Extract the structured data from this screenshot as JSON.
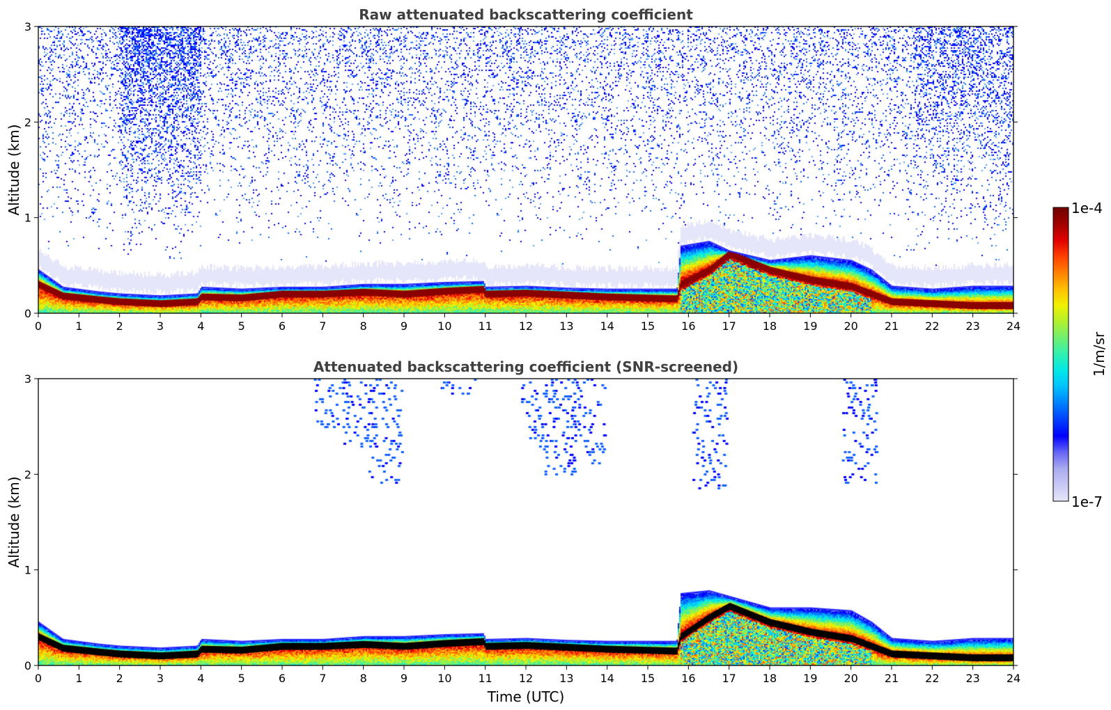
{
  "chart_data": [
    {
      "type": "heatmap",
      "title": "Raw attenuated backscattering coefficient",
      "xlabel": "",
      "ylabel": "Altitude (km)",
      "xlim": [
        0,
        24
      ],
      "ylim": [
        0,
        3
      ],
      "xticks": [
        "0",
        "1",
        "2",
        "3",
        "4",
        "5",
        "6",
        "7",
        "8",
        "9",
        "10",
        "11",
        "12",
        "13",
        "14",
        "15",
        "16",
        "17",
        "18",
        "19",
        "20",
        "21",
        "22",
        "23",
        "24"
      ],
      "yticks": [
        "0",
        "1",
        "2",
        "3"
      ],
      "layer_top_km": [
        [
          0,
          0.45
        ],
        [
          0.6,
          0.27
        ],
        [
          1.5,
          0.22
        ],
        [
          2,
          0.2
        ],
        [
          3,
          0.18
        ],
        [
          3.9,
          0.2
        ],
        [
          4,
          0.27
        ],
        [
          5,
          0.25
        ],
        [
          6,
          0.27
        ],
        [
          7,
          0.27
        ],
        [
          8,
          0.3
        ],
        [
          9,
          0.3
        ],
        [
          10,
          0.32
        ],
        [
          10.95,
          0.33
        ],
        [
          11,
          0.27
        ],
        [
          12,
          0.28
        ],
        [
          13,
          0.26
        ],
        [
          14,
          0.25
        ],
        [
          15.7,
          0.25
        ],
        [
          15.8,
          0.7
        ],
        [
          16.5,
          0.75
        ],
        [
          17,
          0.65
        ],
        [
          18,
          0.55
        ],
        [
          19,
          0.6
        ],
        [
          20,
          0.55
        ],
        [
          20.5,
          0.45
        ],
        [
          21,
          0.28
        ],
        [
          22,
          0.25
        ],
        [
          23,
          0.28
        ],
        [
          24,
          0.28
        ]
      ],
      "max_layer_km": [
        [
          0,
          0.3
        ],
        [
          0.6,
          0.18
        ],
        [
          1.5,
          0.14
        ],
        [
          2,
          0.12
        ],
        [
          3,
          0.1
        ],
        [
          3.9,
          0.12
        ],
        [
          4,
          0.17
        ],
        [
          5,
          0.16
        ],
        [
          6,
          0.2
        ],
        [
          7,
          0.2
        ],
        [
          8,
          0.22
        ],
        [
          9,
          0.2
        ],
        [
          10,
          0.23
        ],
        [
          10.95,
          0.25
        ],
        [
          11,
          0.2
        ],
        [
          12,
          0.21
        ],
        [
          13,
          0.19
        ],
        [
          14,
          0.17
        ],
        [
          15.7,
          0.15
        ],
        [
          15.8,
          0.3
        ],
        [
          16.5,
          0.45
        ],
        [
          17,
          0.62
        ],
        [
          18,
          0.45
        ],
        [
          19,
          0.35
        ],
        [
          20,
          0.28
        ],
        [
          20.5,
          0.2
        ],
        [
          21,
          0.12
        ],
        [
          22,
          0.1
        ],
        [
          23,
          0.08
        ],
        [
          24,
          0.08
        ]
      ]
    },
    {
      "type": "heatmap",
      "title": "Attenuated backscattering coefficient (SNR-screened)",
      "xlabel": "Time (UTC)",
      "ylabel": "Altitude (km)",
      "xlim": [
        0,
        24
      ],
      "ylim": [
        0,
        3
      ],
      "xticks": [
        "0",
        "1",
        "2",
        "3",
        "4",
        "5",
        "6",
        "7",
        "8",
        "9",
        "10",
        "11",
        "12",
        "13",
        "14",
        "15",
        "16",
        "17",
        "18",
        "19",
        "20",
        "21",
        "22",
        "23",
        "24"
      ],
      "yticks": [
        "0",
        "1",
        "2",
        "3"
      ],
      "layer_top_km": [
        [
          0,
          0.45
        ],
        [
          0.6,
          0.27
        ],
        [
          1.5,
          0.22
        ],
        [
          2,
          0.2
        ],
        [
          3,
          0.18
        ],
        [
          3.9,
          0.2
        ],
        [
          4,
          0.27
        ],
        [
          5,
          0.25
        ],
        [
          6,
          0.27
        ],
        [
          7,
          0.27
        ],
        [
          8,
          0.3
        ],
        [
          9,
          0.3
        ],
        [
          10,
          0.32
        ],
        [
          10.95,
          0.33
        ],
        [
          11,
          0.27
        ],
        [
          12,
          0.28
        ],
        [
          13,
          0.26
        ],
        [
          14,
          0.25
        ],
        [
          15.7,
          0.25
        ],
        [
          15.8,
          0.75
        ],
        [
          16.5,
          0.78
        ],
        [
          17,
          0.72
        ],
        [
          18,
          0.6
        ],
        [
          19,
          0.6
        ],
        [
          20,
          0.57
        ],
        [
          20.5,
          0.45
        ],
        [
          21,
          0.28
        ],
        [
          22,
          0.25
        ],
        [
          23,
          0.28
        ],
        [
          24,
          0.28
        ]
      ],
      "max_layer_km": [
        [
          0,
          0.3
        ],
        [
          0.6,
          0.18
        ],
        [
          1.5,
          0.14
        ],
        [
          2,
          0.12
        ],
        [
          3,
          0.1
        ],
        [
          3.9,
          0.12
        ],
        [
          4,
          0.17
        ],
        [
          5,
          0.16
        ],
        [
          6,
          0.2
        ],
        [
          7,
          0.2
        ],
        [
          8,
          0.22
        ],
        [
          9,
          0.2
        ],
        [
          10,
          0.23
        ],
        [
          10.95,
          0.25
        ],
        [
          11,
          0.2
        ],
        [
          12,
          0.21
        ],
        [
          13,
          0.19
        ],
        [
          14,
          0.17
        ],
        [
          15.7,
          0.15
        ],
        [
          15.8,
          0.3
        ],
        [
          16.5,
          0.5
        ],
        [
          17,
          0.62
        ],
        [
          18,
          0.45
        ],
        [
          19,
          0.35
        ],
        [
          20,
          0.28
        ],
        [
          20.5,
          0.2
        ],
        [
          21,
          0.12
        ],
        [
          22,
          0.1
        ],
        [
          23,
          0.08
        ],
        [
          24,
          0.08
        ]
      ],
      "upper_aerosol_patches_km": [
        [
          7.2,
          2.5,
          3.0
        ],
        [
          7.9,
          2.3,
          3.0
        ],
        [
          8.5,
          1.9,
          3.0
        ],
        [
          10.3,
          2.8,
          3.0
        ],
        [
          12.3,
          2.3,
          3.0
        ],
        [
          12.8,
          2.0,
          3.0
        ],
        [
          13.5,
          2.1,
          3.0
        ],
        [
          16.5,
          1.85,
          3.0
        ],
        [
          20.2,
          1.9,
          3.0
        ]
      ]
    }
  ],
  "colorbar": {
    "label": "1/m/sr",
    "max_label": "1e-4",
    "min_label": "1e-7",
    "colors": [
      "#e6e6fa",
      "#c8c8f5",
      "#aaaaf0",
      "#6464f5",
      "#0000ff",
      "#0040ff",
      "#0080ff",
      "#00c0ff",
      "#00e8e8",
      "#30f0b0",
      "#70f070",
      "#b0f030",
      "#f0f000",
      "#ffc000",
      "#ff8000",
      "#ff4000",
      "#e00000",
      "#a00000",
      "#700000"
    ]
  }
}
